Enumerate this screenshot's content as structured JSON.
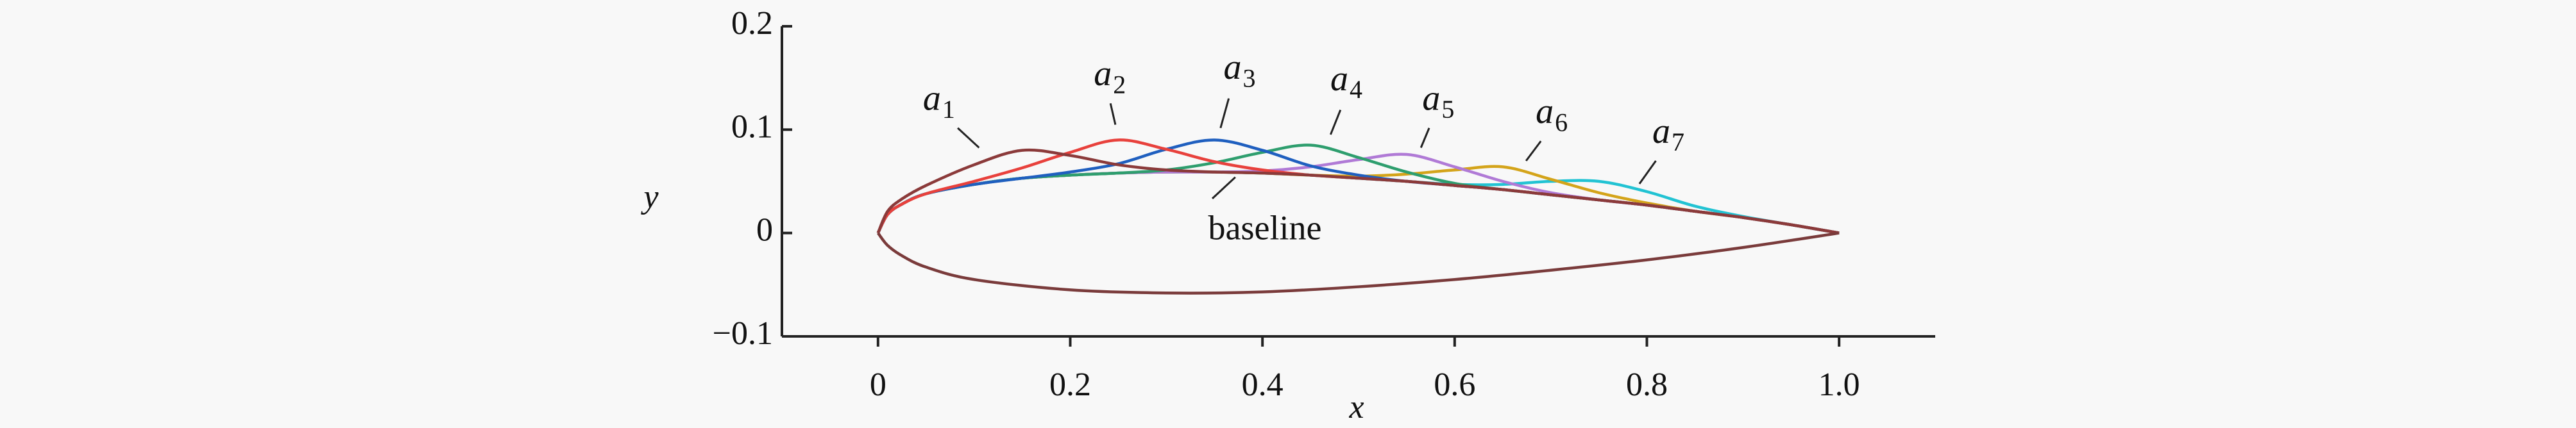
{
  "chart_data": {
    "type": "line",
    "x_label": "x",
    "y_label": "y",
    "xlim": [
      -0.1,
      1.1
    ],
    "ylim": [
      -0.1,
      0.2
    ],
    "xticks": [
      0,
      0.2,
      0.4,
      0.6,
      0.8,
      {
        "value": 1,
        "label": "1.0"
      }
    ],
    "yticks": [
      {
        "value": -0.1,
        "label": "−0.1"
      },
      0,
      0.1,
      0.2
    ],
    "x": [
      0,
      0.01,
      0.025,
      0.05,
      0.1,
      0.15,
      0.2,
      0.25,
      0.3,
      0.35,
      0.4,
      0.45,
      0.5,
      0.55,
      0.6,
      0.65,
      0.7,
      0.75,
      0.8,
      0.85,
      0.9,
      0.95,
      1
    ],
    "series": [
      {
        "name": "baseline",
        "color": "#3fd4dc",
        "values": [
          0,
          0.018,
          0.028,
          0.038,
          0.047,
          0.053,
          0.056,
          0.058,
          0.059,
          0.059,
          0.058,
          0.056,
          0.053,
          0.05,
          0.046,
          0.042,
          0.037,
          0.032,
          0.027,
          0.021,
          0.015,
          0.008,
          0
        ]
      },
      {
        "name": "a",
        "sub": "7",
        "color": "#22c3d3",
        "values": [
          0,
          0.018,
          0.028,
          0.038,
          0.047,
          0.053,
          0.056,
          0.058,
          0.059,
          0.059,
          0.058,
          0.056,
          0.053,
          0.05,
          0.047,
          0.047,
          0.05,
          0.05,
          0.04,
          0.026,
          0.016,
          0.008,
          0
        ]
      },
      {
        "name": "a",
        "sub": "6",
        "color": "#d4a41a",
        "values": [
          0,
          0.018,
          0.028,
          0.038,
          0.047,
          0.053,
          0.056,
          0.058,
          0.059,
          0.059,
          0.058,
          0.056,
          0.055,
          0.057,
          0.061,
          0.064,
          0.052,
          0.039,
          0.029,
          0.021,
          0.015,
          0.008,
          0
        ]
      },
      {
        "name": "a",
        "sub": "5",
        "color": "#b07ad6",
        "values": [
          0,
          0.018,
          0.028,
          0.038,
          0.047,
          0.053,
          0.056,
          0.058,
          0.059,
          0.059,
          0.06,
          0.064,
          0.071,
          0.076,
          0.064,
          0.05,
          0.039,
          0.032,
          0.027,
          0.021,
          0.015,
          0.008,
          0
        ]
      },
      {
        "name": "a",
        "sub": "4",
        "color": "#2e9e6e",
        "values": [
          0,
          0.018,
          0.028,
          0.038,
          0.047,
          0.053,
          0.056,
          0.058,
          0.061,
          0.068,
          0.078,
          0.085,
          0.073,
          0.059,
          0.048,
          0.042,
          0.037,
          0.032,
          0.027,
          0.021,
          0.015,
          0.008,
          0
        ]
      },
      {
        "name": "a",
        "sub": "3",
        "color": "#1f5fbf",
        "values": [
          0,
          0.018,
          0.028,
          0.038,
          0.047,
          0.053,
          0.059,
          0.067,
          0.081,
          0.09,
          0.08,
          0.065,
          0.056,
          0.05,
          0.046,
          0.042,
          0.037,
          0.032,
          0.027,
          0.021,
          0.015,
          0.008,
          0
        ]
      },
      {
        "name": "a",
        "sub": "2",
        "color": "#e8413c",
        "values": [
          0,
          0.018,
          0.028,
          0.038,
          0.05,
          0.063,
          0.078,
          0.09,
          0.081,
          0.069,
          0.061,
          0.056,
          0.053,
          0.05,
          0.046,
          0.042,
          0.037,
          0.032,
          0.027,
          0.021,
          0.015,
          0.008,
          0
        ]
      },
      {
        "name": "a",
        "sub": "1",
        "color": "#8b3a3a",
        "values": [
          0,
          0.021,
          0.033,
          0.046,
          0.066,
          0.08,
          0.075,
          0.066,
          0.061,
          0.059,
          0.058,
          0.056,
          0.053,
          0.05,
          0.046,
          0.042,
          0.037,
          0.032,
          0.027,
          0.021,
          0.015,
          0.008,
          0
        ]
      },
      {
        "color": "#7a3b3b",
        "x": [
          0,
          0.01,
          0.025,
          0.05,
          0.1,
          0.2,
          0.3,
          0.4,
          0.5,
          0.6,
          0.7,
          0.8,
          0.9,
          1
        ],
        "values": [
          0,
          -0.012,
          -0.022,
          -0.033,
          -0.045,
          -0.055,
          -0.058,
          -0.057,
          -0.052,
          -0.045,
          -0.036,
          -0.026,
          -0.014,
          0
        ]
      }
    ]
  }
}
